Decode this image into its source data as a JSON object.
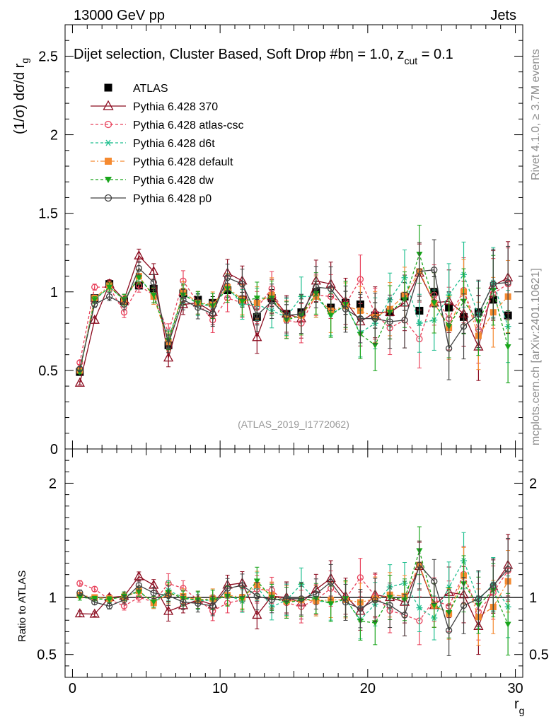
{
  "header": {
    "left": "13000 GeV pp",
    "right": "Jets"
  },
  "side_labels": {
    "rivet": "Rivet 4.1.0, ≥ 3.7M events",
    "mcplots": "mcplots.cern.ch [arXiv:2401.10621]"
  },
  "chart_data": {
    "type": "line",
    "title": "Dijet selection, Cluster Based, Soft Drop #b",
    "title_eta": "η = 1.0, z",
    "title_sub": "cut",
    "title_end": " = 0.1",
    "analysis": "(ATLAS_2019_I1772062)",
    "ylabel_main": "(1/σ) dσ/d r",
    "ylabel_main_sub": "g",
    "ylabel_ratio": "Ratio to ATLAS",
    "xlabel": "r",
    "xlabel_sub": "g",
    "xlim": [
      -0.5,
      30.5
    ],
    "ylim_main": [
      0,
      2.7
    ],
    "ylim_ratio": [
      0.3,
      2.3
    ],
    "x_ticks": [
      "0",
      "10",
      "20",
      "30"
    ],
    "y_ticks_main": [
      "0.5",
      "1",
      "1.5",
      "2",
      "2.5"
    ],
    "y_zero_label": "0",
    "y_ticks_ratio": [
      "0.5",
      "1",
      "2"
    ],
    "x": [
      0.5,
      1.5,
      2.5,
      3.5,
      4.5,
      5.5,
      6.5,
      7.5,
      8.5,
      9.5,
      10.5,
      11.5,
      12.5,
      13.5,
      14.5,
      15.5,
      16.5,
      17.5,
      18.5,
      19.5,
      20.5,
      21.5,
      22.5,
      23.5,
      24.5,
      25.5,
      26.5,
      27.5,
      28.5,
      29.5
    ],
    "series": [
      {
        "name": "ATLAS",
        "color": "#000000",
        "marker": "square-filled",
        "dash": "none",
        "values": [
          0.49,
          0.96,
          1.05,
          0.94,
          1.04,
          1.02,
          0.66,
          0.99,
          0.95,
          0.93,
          1.01,
          0.95,
          0.84,
          0.96,
          0.86,
          0.87,
          1.0,
          0.9,
          0.93,
          0.92,
          0.85,
          0.87,
          0.97,
          0.88,
          1.0,
          0.9,
          0.84,
          0.87,
          0.95,
          0.85
        ]
      },
      {
        "name": "Pythia 6.428 370",
        "color": "#8b0a1e",
        "marker": "triangle-open",
        "dash": "none",
        "values": [
          0.42,
          0.82,
          1.05,
          0.95,
          1.23,
          1.13,
          0.58,
          0.92,
          0.93,
          0.87,
          1.12,
          1.07,
          0.71,
          0.97,
          0.86,
          0.83,
          1.07,
          1.05,
          0.94,
          0.81,
          0.87,
          0.87,
          0.93,
          1.12,
          0.93,
          0.94,
          0.86,
          0.65,
          1.04,
          1.09
        ]
      },
      {
        "name": "Pythia 6.428 atlas-csc",
        "color": "#e8405a",
        "marker": "circle-open",
        "dash": "4,3",
        "values": [
          0.55,
          1.03,
          1.03,
          0.87,
          1.04,
          0.98,
          0.74,
          1.07,
          0.93,
          0.82,
          0.96,
          0.93,
          0.9,
          1.02,
          0.82,
          0.8,
          0.98,
          0.97,
          0.92,
          1.08,
          0.86,
          0.77,
          0.82,
          0.7,
          0.98,
          0.83,
          1.01,
          0.76,
          0.99,
          1.05
        ]
      },
      {
        "name": "Pythia 6.428 d6t",
        "color": "#1fbf8f",
        "marker": "asterisk",
        "dash": "4,3",
        "values": [
          0.5,
          0.95,
          1.03,
          0.95,
          1.1,
          0.97,
          0.7,
          0.99,
          0.92,
          0.91,
          1.03,
          0.92,
          0.92,
          0.88,
          0.84,
          0.97,
          0.97,
          0.86,
          0.91,
          0.74,
          0.8,
          0.95,
          1.09,
          0.8,
          0.82,
          0.98,
          1.11,
          0.85,
          1.06,
          0.78
        ]
      },
      {
        "name": "Pythia 6.428 default",
        "color": "#f58a30",
        "marker": "square-filled",
        "dash": "6,3,2,3",
        "values": [
          0.5,
          0.96,
          1.04,
          0.94,
          1.1,
          0.97,
          0.68,
          1.0,
          0.93,
          0.92,
          1.03,
          0.95,
          0.93,
          0.98,
          0.83,
          0.85,
          0.97,
          0.88,
          0.91,
          0.88,
          0.84,
          0.89,
          0.98,
          1.13,
          0.93,
          0.77,
          1.0,
          0.72,
          0.87,
          0.97
        ]
      },
      {
        "name": "Pythia 6.428 dw",
        "color": "#19a51b",
        "marker": "triangle-down-filled",
        "dash": "4,3",
        "values": [
          0.49,
          0.95,
          1.03,
          0.95,
          1.09,
          0.98,
          0.69,
          0.98,
          0.93,
          0.91,
          1.02,
          0.94,
          0.96,
          0.96,
          0.82,
          0.85,
          0.99,
          0.85,
          0.92,
          0.73,
          0.66,
          0.87,
          0.95,
          1.24,
          0.93,
          0.78,
          0.94,
          0.81,
          1.01,
          0.65
        ]
      },
      {
        "name": "Pythia 6.428 p0",
        "color": "#404040",
        "marker": "circle-open",
        "dash": "none",
        "values": [
          0.51,
          0.92,
          0.97,
          0.92,
          1.15,
          1.06,
          0.67,
          0.95,
          0.9,
          0.86,
          1.09,
          1.05,
          0.85,
          0.94,
          0.85,
          0.86,
          1.03,
          1.02,
          0.89,
          0.83,
          0.83,
          0.81,
          0.82,
          1.13,
          1.14,
          0.64,
          0.78,
          0.86,
          1.05,
          1.06
        ]
      }
    ]
  }
}
